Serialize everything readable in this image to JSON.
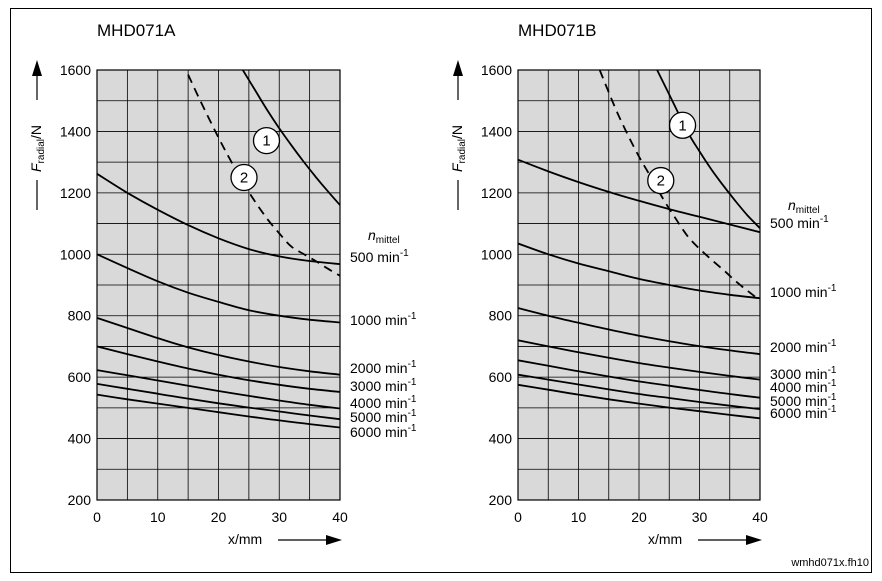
{
  "colors": {
    "plot_bg": "#d9d9d9",
    "grid": "#000000",
    "curve": "#000000",
    "background": "#ffffff"
  },
  "footer": "wmhd071x.fh10",
  "chart_data": [
    {
      "type": "line",
      "title": "MHD071A",
      "ylabel_main": "F",
      "ylabel_sub": "radial",
      "ylabel_unit": "/N",
      "xlabel": "x/mm",
      "xlim": [
        0,
        40
      ],
      "ylim": [
        200,
        1600
      ],
      "xticks": [
        "0",
        "10",
        "20",
        "30",
        "40"
      ],
      "yticks": [
        "200",
        "400",
        "600",
        "800",
        "1000",
        "1200",
        "1400",
        "1600"
      ],
      "grid": true,
      "legend_header_main": "n",
      "legend_header_sub": "mittel",
      "x": [
        0,
        5,
        10,
        15,
        20,
        25,
        30,
        35,
        40
      ],
      "series": [
        {
          "name": "500 min-1",
          "label_main": "500 min",
          "label_exp": "-1",
          "values": [
            1262,
            1200,
            1145,
            1095,
            1052,
            1017,
            993,
            978,
            968
          ]
        },
        {
          "name": "1000 min-1",
          "label_main": "1000 min",
          "label_exp": "-1",
          "values": [
            1000,
            955,
            912,
            875,
            845,
            818,
            800,
            787,
            778
          ]
        },
        {
          "name": "2000 min-1",
          "label_main": "2000 min",
          "label_exp": "-1",
          "values": [
            793,
            760,
            727,
            697,
            672,
            651,
            633,
            619,
            608
          ]
        },
        {
          "name": "3000 min-1",
          "label_main": "3000 min",
          "label_exp": "-1",
          "values": [
            700,
            675,
            651,
            628,
            608,
            590,
            575,
            562,
            552
          ]
        },
        {
          "name": "4000 min-1",
          "label_main": "4000 min",
          "label_exp": "-1",
          "values": [
            623,
            606,
            589,
            572,
            555,
            539,
            524,
            510,
            498
          ]
        },
        {
          "name": "5000 min-1",
          "label_main": "5000 min",
          "label_exp": "-1",
          "values": [
            578,
            562,
            546,
            530,
            515,
            501,
            488,
            475,
            463
          ]
        },
        {
          "name": "6000 min-1",
          "label_main": "6000 min",
          "label_exp": "-1",
          "values": [
            543,
            528,
            514,
            500,
            486,
            472,
            459,
            447,
            436
          ]
        }
      ],
      "limit_curves": [
        {
          "label": "1",
          "style": "solid",
          "x": [
            24,
            26,
            28,
            30,
            32,
            34,
            36,
            38,
            40
          ],
          "values": [
            1600,
            1535,
            1470,
            1410,
            1355,
            1302,
            1252,
            1205,
            1160
          ],
          "label_x": 27.9,
          "label_y": 1370
        },
        {
          "label": "2",
          "style": "dashed",
          "x": [
            15,
            17,
            20,
            22,
            24,
            26,
            28,
            30,
            32,
            34,
            36,
            38,
            40
          ],
          "values": [
            1585,
            1500,
            1380,
            1305,
            1235,
            1172,
            1116,
            1068,
            1025,
            1001,
            978,
            953,
            930
          ],
          "label_x": 24.2,
          "label_y": 1250
        }
      ]
    },
    {
      "type": "line",
      "title": "MHD071B",
      "ylabel_main": "F",
      "ylabel_sub": "radial",
      "ylabel_unit": "/N",
      "xlabel": "x/mm",
      "xlim": [
        0,
        40
      ],
      "ylim": [
        200,
        1600
      ],
      "xticks": [
        "0",
        "10",
        "20",
        "30",
        "40"
      ],
      "yticks": [
        "200",
        "400",
        "600",
        "800",
        "1000",
        "1200",
        "1400",
        "1600"
      ],
      "grid": true,
      "legend_header_main": "n",
      "legend_header_sub": "mittel",
      "x": [
        0,
        5,
        10,
        15,
        20,
        25,
        30,
        35,
        40
      ],
      "series": [
        {
          "name": "500 min-1",
          "label_main": "500 min",
          "label_exp": "-1",
          "values": [
            1308,
            1270,
            1235,
            1203,
            1174,
            1147,
            1122,
            1097,
            1072
          ]
        },
        {
          "name": "1000 min-1",
          "label_main": "1000 min",
          "label_exp": "-1",
          "values": [
            1035,
            1000,
            970,
            945,
            920,
            900,
            882,
            868,
            857
          ]
        },
        {
          "name": "2000 min-1",
          "label_main": "2000 min",
          "label_exp": "-1",
          "values": [
            825,
            800,
            777,
            755,
            735,
            717,
            701,
            687,
            675
          ]
        },
        {
          "name": "3000 min-1",
          "label_main": "3000 min",
          "label_exp": "-1",
          "values": [
            720,
            700,
            681,
            663,
            646,
            631,
            617,
            604,
            592
          ]
        },
        {
          "name": "4000 min-1",
          "label_main": "4000 min",
          "label_exp": "-1",
          "values": [
            655,
            637,
            619,
            602,
            586,
            572,
            558,
            545,
            533
          ]
        },
        {
          "name": "5000 min-1",
          "label_main": "5000 min",
          "label_exp": "-1",
          "values": [
            608,
            592,
            576,
            560,
            545,
            532,
            519,
            507,
            496
          ]
        },
        {
          "name": "6000 min-1",
          "label_main": "6000 min",
          "label_exp": "-1",
          "values": [
            575,
            559,
            543,
            528,
            514,
            501,
            489,
            477,
            466
          ]
        }
      ],
      "limit_curves": [
        {
          "label": "1",
          "style": "solid",
          "x": [
            23,
            25,
            28,
            30,
            32,
            34,
            36,
            38,
            40
          ],
          "values": [
            1600,
            1520,
            1400,
            1335,
            1275,
            1222,
            1172,
            1125,
            1085
          ],
          "label_x": 27.2,
          "label_y": 1420
        },
        {
          "label": "2",
          "style": "dashed",
          "x": [
            13.5,
            16,
            18,
            20,
            22,
            24,
            26,
            28,
            30,
            32,
            34,
            36,
            38,
            40
          ],
          "values": [
            1600,
            1480,
            1395,
            1318,
            1250,
            1180,
            1118,
            1060,
            1018,
            982,
            948,
            912,
            880,
            850
          ],
          "label_x": 23.6,
          "label_y": 1240
        }
      ]
    }
  ]
}
